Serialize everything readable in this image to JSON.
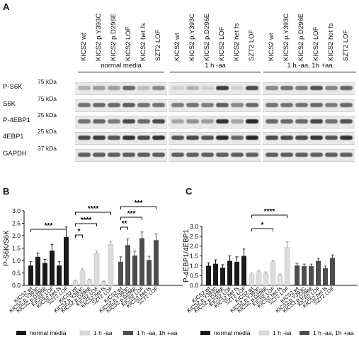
{
  "panels": {
    "a": "A",
    "b": "B",
    "c": "C"
  },
  "lanes": [
    "KICS2 wt",
    "KICS2 p.Y393C",
    "KICS2 p.D296E",
    "KICS2 LOF",
    "KICS2 het fs",
    "SZT2 LOF"
  ],
  "conditions": [
    "normal media",
    "1 h -aa",
    "1 h -aa, 1h +aa"
  ],
  "blot_rows": [
    {
      "label": "P-S6K",
      "kda": "75 kDa"
    },
    {
      "label": "S6K",
      "kda": "75 kDa"
    },
    {
      "label": "P-4EBP1",
      "kda": "25 kDa"
    },
    {
      "label": "4EBP1",
      "kda": "25 kDa"
    },
    {
      "label": "GAPDH",
      "kda": "37 kDa"
    }
  ],
  "bar_xlabels": [
    "KICS2 wt",
    "KICS2 p.Y393C",
    "KICS2 p.D296E",
    "KICS2 LOF",
    "KICS2 het fs",
    "SZT2 LOF"
  ],
  "legend": [
    {
      "label": "normal media",
      "color": "#1a1a1a"
    },
    {
      "label": "1 h -aa",
      "color": "#dcdcdc"
    },
    {
      "label": "1 h -aa, 1h +aa",
      "color": "#4d4d4d"
    }
  ],
  "chart_data": [
    {
      "type": "bar",
      "ylabel": "P-S6K/S6K",
      "ylim": [
        0,
        3
      ],
      "yticks": [
        "0.0",
        "0.5",
        "1.0",
        "1.5",
        "2.0",
        "2.5",
        "3.0"
      ],
      "categories": [
        "KICS2 wt",
        "KICS2 p.Y393C",
        "KICS2 p.D296E",
        "KICS2 LOF",
        "KICS2 het fs",
        "SZT2 LOF"
      ],
      "series": [
        {
          "name": "normal media",
          "values": [
            0.8,
            1.15,
            0.9,
            1.4,
            0.8,
            1.95
          ],
          "errors": [
            0.15,
            0.15,
            0.15,
            0.25,
            0.15,
            0.4
          ]
        },
        {
          "name": "1 h -aa",
          "values": [
            0.18,
            0.6,
            0.22,
            1.3,
            0.15,
            1.65
          ],
          "errors": [
            0.03,
            0.06,
            0.03,
            0.08,
            0.02,
            0.12
          ]
        },
        {
          "name": "1 h -aa, 1h +aa",
          "values": [
            0.95,
            1.62,
            1.2,
            1.9,
            1.02,
            1.82
          ],
          "errors": [
            0.2,
            0.25,
            0.18,
            0.25,
            0.15,
            0.25
          ]
        }
      ],
      "significance": [
        "***",
        "*",
        "****",
        "****",
        "**",
        "***",
        "***"
      ]
    },
    {
      "type": "bar",
      "ylabel": "P-4EBP1/4EBP1",
      "ylim": [
        0,
        3
      ],
      "yticks": [
        "0.0",
        "0.5",
        "1.0",
        "1.5",
        "2.0",
        "2.5",
        "3.0"
      ],
      "categories": [
        "KICS2 wt",
        "KICS2 p.Y393C",
        "KICS2 p.D296E",
        "KICS2 LOF",
        "KICS2 het fs",
        "SZT2 LOF"
      ],
      "series": [
        {
          "name": "normal media",
          "values": [
            1.0,
            1.1,
            0.9,
            1.25,
            1.2,
            1.5
          ],
          "errors": [
            0.15,
            0.2,
            0.15,
            0.25,
            0.25,
            0.35
          ]
        },
        {
          "name": "1 h -aa",
          "values": [
            0.55,
            0.7,
            0.6,
            1.2,
            0.5,
            1.92
          ],
          "errors": [
            0.08,
            0.08,
            0.08,
            0.08,
            0.08,
            0.3
          ]
        },
        {
          "name": "1 h -aa, 1h +aa",
          "values": [
            1.02,
            0.98,
            0.98,
            1.25,
            0.88,
            1.4
          ],
          "errors": [
            0.1,
            0.1,
            0.1,
            0.12,
            0.1,
            0.15
          ]
        }
      ],
      "significance": [
        "*",
        "****"
      ]
    }
  ]
}
